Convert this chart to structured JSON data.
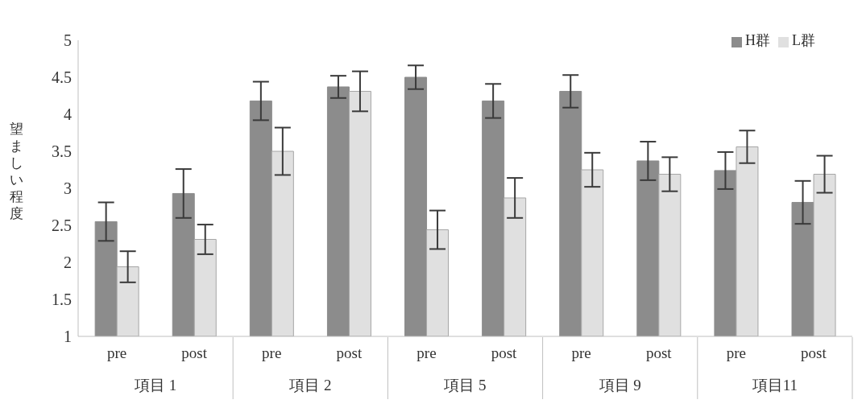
{
  "chart_data": {
    "type": "bar",
    "ylabel": "望ましい程度",
    "categories": [
      "pre",
      "post",
      "pre",
      "post",
      "pre",
      "post",
      "pre",
      "post",
      "pre",
      "post"
    ],
    "annotations": [
      "項目 1",
      "項目 2",
      "項目 5",
      "項目 9",
      "項目11"
    ],
    "series": [
      {
        "name": "H群",
        "color": "#8c8c8c",
        "values": [
          2.55,
          2.93,
          4.18,
          4.37,
          4.5,
          4.18,
          4.31,
          3.37,
          3.24,
          2.81
        ],
        "errors": [
          0.26,
          0.33,
          0.26,
          0.15,
          0.16,
          0.23,
          0.22,
          0.26,
          0.25,
          0.29
        ]
      },
      {
        "name": "L群",
        "color": "#e0e0e0",
        "values": [
          1.94,
          2.31,
          3.5,
          4.31,
          2.44,
          2.87,
          3.25,
          3.19,
          3.56,
          3.19
        ],
        "errors": [
          0.21,
          0.2,
          0.32,
          0.27,
          0.26,
          0.27,
          0.23,
          0.23,
          0.22,
          0.25
        ]
      }
    ],
    "ylim": [
      1,
      5
    ],
    "yticks": [
      1,
      1.5,
      2,
      2.5,
      3,
      3.5,
      4,
      4.5,
      5
    ],
    "grid": false,
    "legend": "top right"
  }
}
